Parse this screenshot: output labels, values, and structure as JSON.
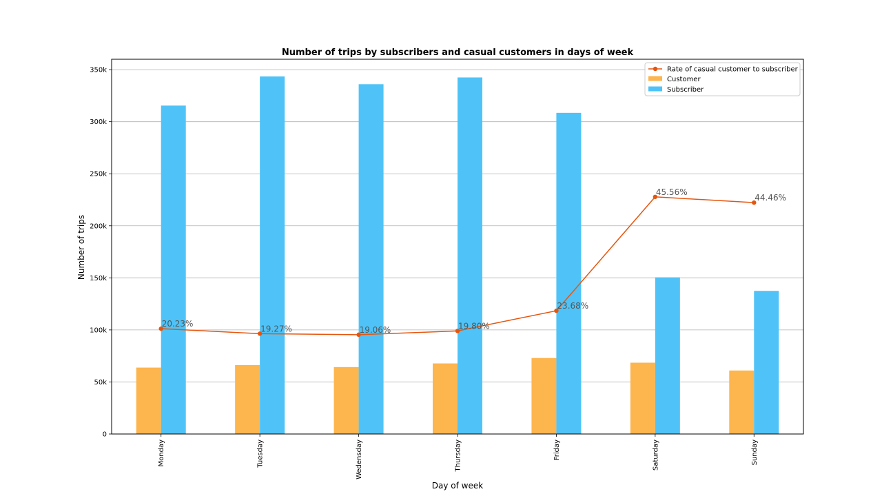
{
  "chart_data": {
    "type": "bar",
    "title": "Number of trips by subscribers and casual customers in days of week",
    "xlabel": "Day of week",
    "ylabel": "Number of trips",
    "categories": [
      "Monday",
      "Tuesday",
      "Wedensday",
      "Thursday",
      "Friday",
      "Saturday",
      "Sunday"
    ],
    "ylim": [
      0,
      360000
    ],
    "yticks": [
      0,
      50000,
      100000,
      150000,
      200000,
      250000,
      300000,
      350000
    ],
    "ytick_labels": [
      "0",
      "50k",
      "100k",
      "150k",
      "200k",
      "250k",
      "300k",
      "350k"
    ],
    "grid": "horizontal",
    "legend_position": "top-right",
    "series": [
      {
        "name": "Customer",
        "kind": "bar",
        "color": "#FDB54E",
        "values": [
          63800,
          66200,
          64300,
          67800,
          73000,
          68500,
          61000
        ]
      },
      {
        "name": "Subscriber",
        "kind": "bar",
        "color": "#4FC3F7",
        "values": [
          315500,
          343500,
          336000,
          342500,
          308500,
          150500,
          137500
        ]
      },
      {
        "name": "Rate of casual customer to subscriber",
        "kind": "line",
        "color": "#E6550D",
        "values": [
          101200,
          96400,
          95400,
          99000,
          118400,
          227800,
          222300
        ],
        "labels": [
          "20.23%",
          "19.27%",
          "19.06%",
          "19.80%",
          "23.68%",
          "45.56%",
          "44.46%"
        ]
      }
    ]
  }
}
